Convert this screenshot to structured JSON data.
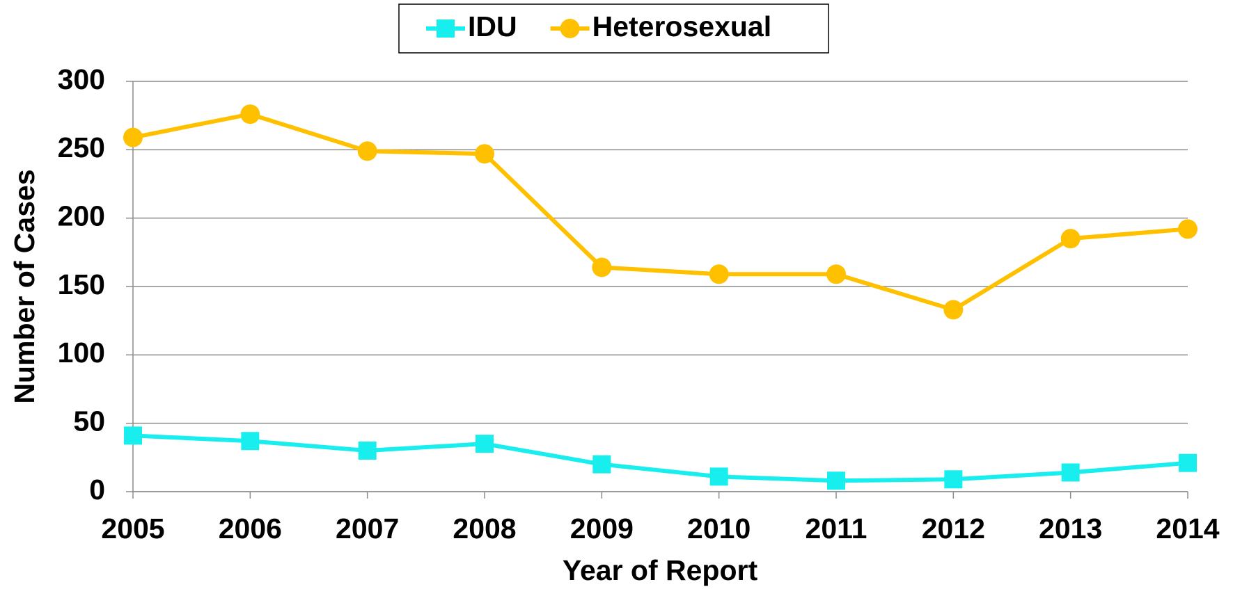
{
  "chart_data": {
    "type": "line",
    "x": [
      2005,
      2006,
      2007,
      2008,
      2009,
      2010,
      2011,
      2012,
      2013,
      2014
    ],
    "xlim": [
      2005,
      2014
    ],
    "xticks": [
      2005,
      2006,
      2007,
      2008,
      2009,
      2010,
      2011,
      2012,
      2013,
      2014
    ],
    "xlabel": "Year of Report",
    "ylabel": "Number of Cases",
    "ylim": [
      0,
      300
    ],
    "yticks": [
      0,
      50,
      100,
      150,
      200,
      250,
      300
    ],
    "grid": true,
    "legend": "top",
    "series": [
      {
        "name": "IDU",
        "color": "#19eeee",
        "marker": "square",
        "values": [
          41,
          37,
          30,
          35,
          20,
          11,
          8,
          9,
          14,
          21
        ]
      },
      {
        "name": "Heterosexual",
        "color": "#ffc000",
        "marker": "circle",
        "values": [
          259,
          276,
          249,
          247,
          164,
          159,
          159,
          133,
          185,
          192
        ]
      }
    ]
  }
}
